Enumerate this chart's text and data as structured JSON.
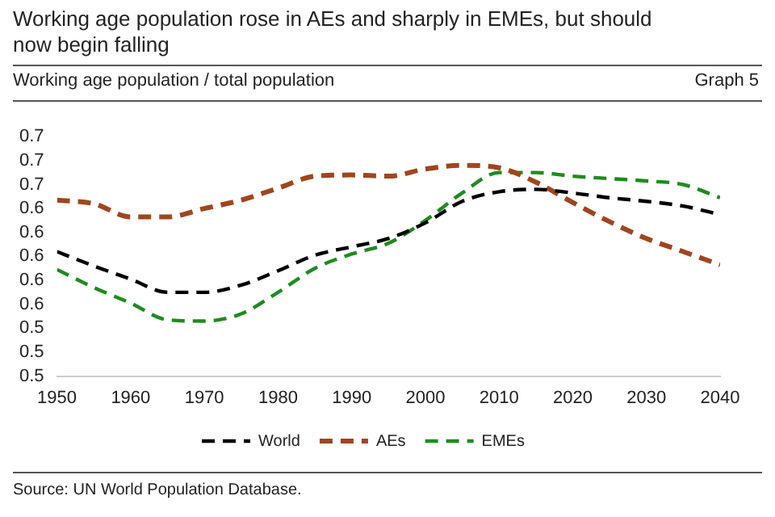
{
  "chart_data": {
    "type": "line",
    "title": "Working age population rose in AEs and sharply in EMEs, but should now begin falling",
    "subtitle": "Working age population / total population",
    "annotations": [
      "Graph 5",
      "Source: UN World Population Database."
    ],
    "x": [
      1950,
      1955,
      1960,
      1965,
      1970,
      1975,
      1980,
      1985,
      1990,
      1995,
      2000,
      2005,
      2010,
      2015,
      2020,
      2025,
      2030,
      2035,
      2040
    ],
    "series": [
      {
        "name": "World",
        "color": "#000000",
        "line_style": "dashed",
        "values": [
          0.604,
          0.592,
          0.581,
          0.57,
          0.57,
          0.576,
          0.588,
          0.601,
          0.608,
          0.615,
          0.628,
          0.646,
          0.654,
          0.656,
          0.653,
          0.649,
          0.646,
          0.642,
          0.635
        ]
      },
      {
        "name": "AEs",
        "color": "#a0461e",
        "line_style": "dashed",
        "values": [
          0.647,
          0.644,
          0.633,
          0.633,
          0.64,
          0.647,
          0.657,
          0.667,
          0.668,
          0.667,
          0.673,
          0.676,
          0.674,
          0.662,
          0.645,
          0.629,
          0.615,
          0.604,
          0.593
        ]
      },
      {
        "name": "EMEs",
        "color": "#1e8c1e",
        "line_style": "dashed",
        "values": [
          0.589,
          0.574,
          0.561,
          0.547,
          0.546,
          0.552,
          0.57,
          0.59,
          0.602,
          0.611,
          0.63,
          0.653,
          0.67,
          0.67,
          0.667,
          0.665,
          0.663,
          0.66,
          0.649
        ]
      }
    ],
    "xlim": [
      1950,
      2040
    ],
    "xticks": [
      1950,
      1960,
      1970,
      1980,
      1990,
      2000,
      2010,
      2020,
      2030,
      2040
    ],
    "ylim": [
      0.5,
      0.7
    ],
    "yticks": [
      {
        "value": 0.5,
        "label": "0.5"
      },
      {
        "value": 0.52,
        "label": "0.5"
      },
      {
        "value": 0.54,
        "label": "0.5"
      },
      {
        "value": 0.56,
        "label": "0.6"
      },
      {
        "value": 0.58,
        "label": "0.6"
      },
      {
        "value": 0.6,
        "label": "0.6"
      },
      {
        "value": 0.62,
        "label": "0.6"
      },
      {
        "value": 0.64,
        "label": "0.6"
      },
      {
        "value": 0.66,
        "label": "0.7"
      },
      {
        "value": 0.68,
        "label": "0.7"
      },
      {
        "value": 0.7,
        "label": "0.7"
      }
    ],
    "grid": false,
    "legend": "bottom",
    "marker": "none"
  }
}
